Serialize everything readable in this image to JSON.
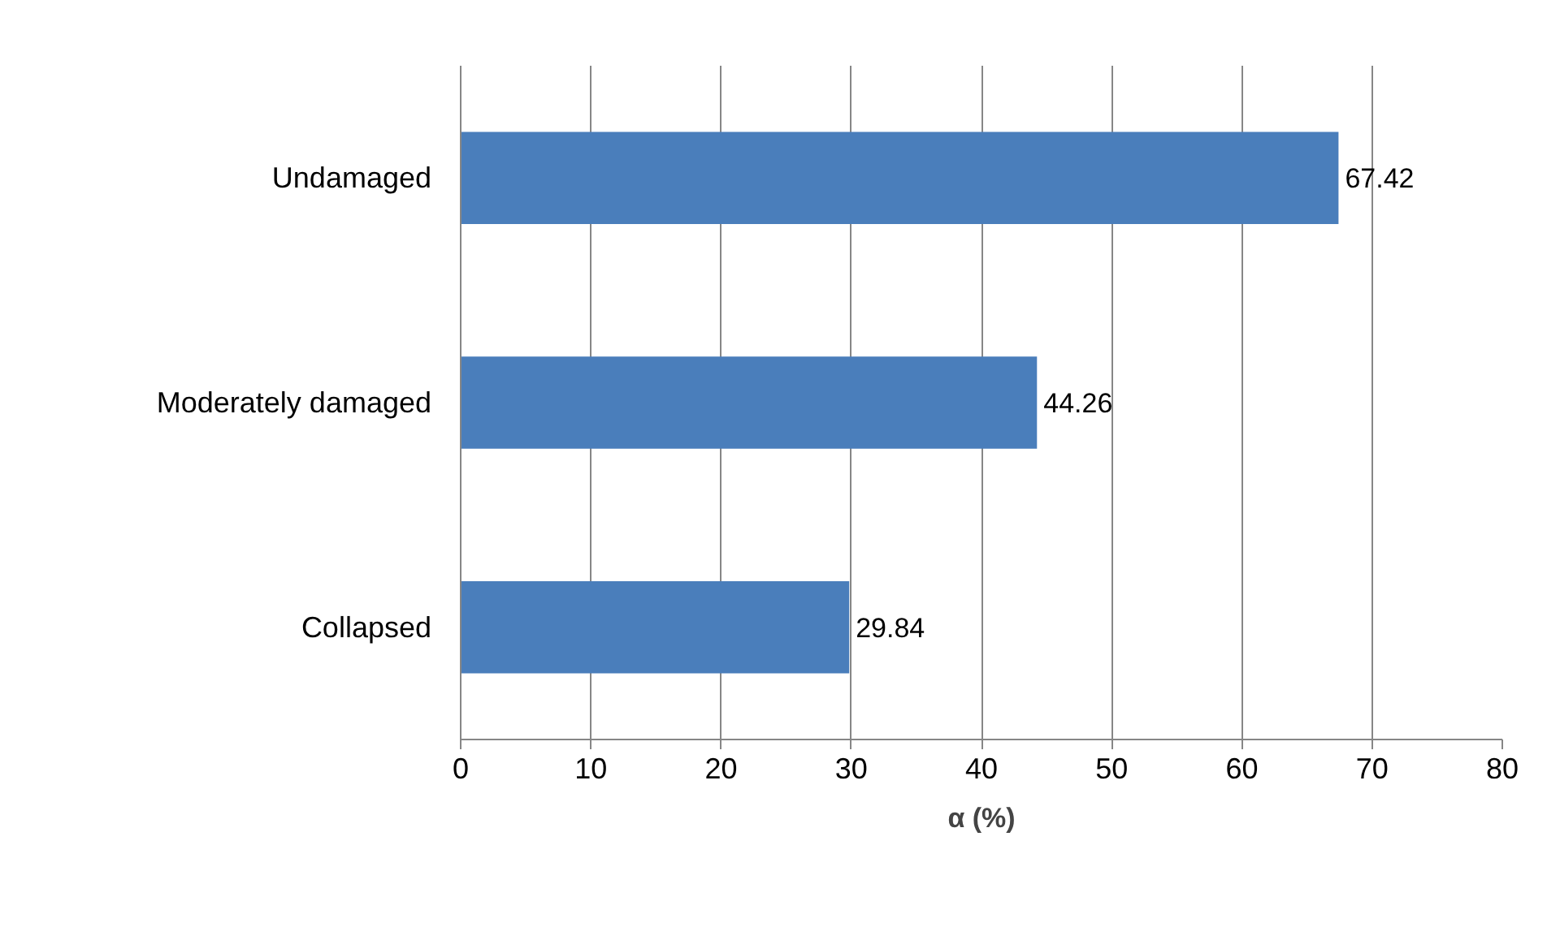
{
  "chart_data": {
    "type": "bar",
    "orientation": "horizontal",
    "xlabel": "α (%)",
    "categories": [
      "Undamaged",
      "Moderately damaged",
      "Collapsed"
    ],
    "values": [
      67.42,
      44.26,
      29.84
    ],
    "color": "#4a7ebb",
    "xlim": [
      0,
      80
    ],
    "xticks": [
      0,
      10,
      20,
      30,
      40,
      50,
      60,
      70,
      80
    ],
    "grid": "x",
    "data_labels": true
  }
}
